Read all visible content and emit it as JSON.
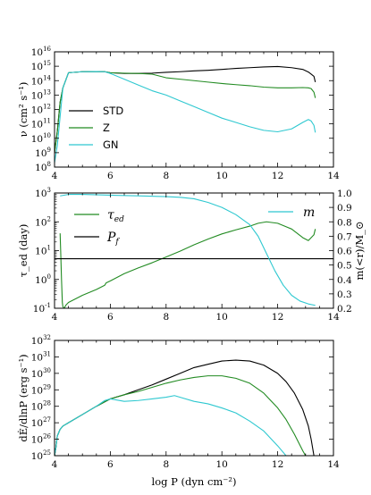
{
  "chart_data": [
    {
      "type": "line",
      "xlim": [
        4,
        14
      ],
      "ylim_exp": [
        8,
        16
      ],
      "yscale": "log",
      "ylabel": "ν (cm² s⁻¹)",
      "x_ticks": [
        "4",
        "6",
        "8",
        "10",
        "12",
        "14"
      ],
      "y_ticks": [
        "10^8",
        "10^9",
        "10^10",
        "10^11",
        "10^12",
        "10^13",
        "10^14",
        "10^15",
        "10^16"
      ],
      "legend": "left",
      "series": [
        {
          "name": "STD",
          "color": "#000000",
          "x": [
            4.0,
            4.1,
            4.2,
            4.3,
            4.5,
            5.0,
            5.5,
            5.8,
            6.0,
            6.5,
            7.0,
            7.5,
            8.0,
            8.5,
            9.0,
            9.5,
            10.0,
            10.5,
            11.0,
            11.5,
            12.0,
            12.5,
            12.9,
            13.1,
            13.2,
            13.3,
            13.35
          ],
          "y": [
            9.0,
            10.5,
            12.5,
            13.5,
            14.55,
            14.62,
            14.63,
            14.62,
            14.55,
            14.5,
            14.5,
            14.52,
            14.58,
            14.62,
            14.68,
            14.72,
            14.78,
            14.85,
            14.9,
            14.95,
            14.98,
            14.9,
            14.78,
            14.6,
            14.45,
            14.3,
            13.9
          ]
        },
        {
          "name": "Z",
          "color": "#228B22",
          "x": [
            4.0,
            4.1,
            4.2,
            4.3,
            4.5,
            5.0,
            5.5,
            5.8,
            6.0,
            6.5,
            7.0,
            7.5,
            8.0,
            8.5,
            9.0,
            9.5,
            10.0,
            10.5,
            11.0,
            11.5,
            12.0,
            12.5,
            12.9,
            13.1,
            13.2,
            13.3,
            13.35
          ],
          "y": [
            9.0,
            10.5,
            12.5,
            13.5,
            14.55,
            14.62,
            14.63,
            14.62,
            14.55,
            14.52,
            14.5,
            14.45,
            14.2,
            14.1,
            14.0,
            13.9,
            13.8,
            13.72,
            13.65,
            13.55,
            13.5,
            13.5,
            13.52,
            13.5,
            13.45,
            13.2,
            12.8
          ]
        },
        {
          "name": "GN",
          "color": "#2EC8D0",
          "x": [
            4.0,
            4.1,
            4.2,
            4.3,
            4.5,
            5.0,
            5.5,
            5.8,
            6.0,
            6.5,
            7.0,
            7.5,
            8.0,
            8.5,
            9.0,
            9.5,
            10.0,
            10.5,
            11.0,
            11.5,
            12.0,
            12.5,
            12.9,
            13.1,
            13.2,
            13.3,
            13.35
          ],
          "y": [
            8.3,
            9.5,
            11.5,
            13.5,
            14.55,
            14.62,
            14.63,
            14.62,
            14.5,
            14.1,
            13.7,
            13.3,
            13.0,
            12.6,
            12.2,
            11.8,
            11.4,
            11.1,
            10.8,
            10.55,
            10.45,
            10.65,
            11.1,
            11.3,
            11.2,
            10.9,
            10.4
          ]
        }
      ]
    },
    {
      "type": "line",
      "xlim": [
        4,
        14
      ],
      "ylim_exp": [
        -1,
        3
      ],
      "yscale": "log",
      "ylabel": "τ_ed (day)",
      "y2label": "m(<r)/M_⊙",
      "y2lim": [
        0.2,
        1.0
      ],
      "x_ticks": [
        "4",
        "6",
        "8",
        "10",
        "12",
        "14"
      ],
      "y_ticks": [
        "10^-1",
        "10^0",
        "10^1",
        "10^2",
        "10^3"
      ],
      "y2_ticks": [
        "0.2",
        "0.3",
        "0.4",
        "0.5",
        "0.6",
        "0.7",
        "0.8",
        "0.9",
        "1.0"
      ],
      "series": [
        {
          "name": "τ_ed",
          "color": "#228B22",
          "x": [
            4.2,
            4.22,
            4.25,
            4.28,
            4.3,
            4.35,
            4.4,
            4.5,
            5.0,
            5.5,
            5.8,
            5.85,
            6.0,
            6.5,
            7.0,
            7.5,
            8.0,
            8.5,
            9.0,
            9.5,
            10.0,
            10.5,
            11.0,
            11.3,
            11.6,
            12.0,
            12.5,
            12.9,
            13.1,
            13.3,
            13.35
          ],
          "y": [
            1.6,
            1.0,
            0.0,
            -0.8,
            -0.95,
            -1.0,
            -0.9,
            -0.8,
            -0.55,
            -0.35,
            -0.2,
            -0.12,
            -0.05,
            0.2,
            0.4,
            0.58,
            0.78,
            0.98,
            1.2,
            1.4,
            1.58,
            1.72,
            1.85,
            1.95,
            2.0,
            1.95,
            1.75,
            1.45,
            1.35,
            1.55,
            1.75
          ]
        },
        {
          "name": "P_f",
          "color": "#000000",
          "x": [
            4.0,
            14.0
          ],
          "y": [
            0.72,
            0.72
          ]
        },
        {
          "name": "m",
          "color": "#2EC8D0",
          "axis": "right",
          "x": [
            4.2,
            4.5,
            5.0,
            6.0,
            7.0,
            8.0,
            8.5,
            9.0,
            9.5,
            10.0,
            10.5,
            11.0,
            11.3,
            11.6,
            11.9,
            12.2,
            12.5,
            12.8,
            13.1,
            13.35
          ],
          "y": [
            0.98,
            0.99,
            0.99,
            0.985,
            0.98,
            0.975,
            0.97,
            0.96,
            0.935,
            0.9,
            0.85,
            0.78,
            0.7,
            0.58,
            0.46,
            0.36,
            0.29,
            0.25,
            0.23,
            0.22
          ]
        }
      ]
    },
    {
      "type": "line",
      "xlim": [
        4,
        14
      ],
      "ylim_exp": [
        25,
        32
      ],
      "yscale": "log",
      "ylabel": "dĖ/dlnP (erg s⁻¹)",
      "xlabel": "log P (dyn cm⁻²)",
      "x_ticks": [
        "4",
        "6",
        "8",
        "10",
        "12",
        "14"
      ],
      "y_ticks": [
        "10^25",
        "10^26",
        "10^27",
        "10^28",
        "10^29",
        "10^30",
        "10^31",
        "10^32"
      ],
      "series": [
        {
          "name": "STD",
          "color": "#000000",
          "x": [
            4.0,
            4.05,
            4.1,
            4.2,
            4.3,
            4.5,
            5.0,
            5.5,
            6.0,
            6.5,
            7.0,
            7.5,
            8.0,
            8.5,
            9.0,
            9.5,
            10.0,
            10.5,
            11.0,
            11.5,
            12.0,
            12.3,
            12.6,
            12.9,
            13.1,
            13.2,
            13.3
          ],
          "y": [
            25.0,
            25.5,
            26.2,
            26.6,
            26.8,
            27.0,
            27.5,
            28.0,
            28.45,
            28.7,
            29.0,
            29.3,
            29.65,
            30.0,
            30.35,
            30.55,
            30.75,
            30.8,
            30.75,
            30.5,
            30.0,
            29.5,
            28.8,
            27.8,
            26.8,
            26.0,
            25.0
          ]
        },
        {
          "name": "Z",
          "color": "#228B22",
          "x": [
            4.0,
            4.05,
            4.1,
            4.2,
            4.3,
            4.5,
            5.0,
            5.5,
            6.0,
            6.5,
            7.0,
            7.5,
            8.0,
            8.5,
            9.0,
            9.5,
            10.0,
            10.5,
            11.0,
            11.5,
            12.0,
            12.3,
            12.6,
            12.9,
            13.0
          ],
          "y": [
            25.0,
            25.5,
            26.2,
            26.6,
            26.8,
            27.0,
            27.5,
            28.0,
            28.45,
            28.7,
            28.9,
            29.15,
            29.4,
            29.6,
            29.75,
            29.85,
            29.85,
            29.7,
            29.4,
            28.8,
            27.9,
            27.2,
            26.3,
            25.3,
            25.0
          ]
        },
        {
          "name": "GN",
          "color": "#2EC8D0",
          "x": [
            4.0,
            4.05,
            4.1,
            4.2,
            4.3,
            4.5,
            5.0,
            5.5,
            5.8,
            6.0,
            6.5,
            7.0,
            7.5,
            8.0,
            8.3,
            8.6,
            9.0,
            9.5,
            10.0,
            10.5,
            11.0,
            11.5,
            12.0,
            12.3
          ],
          "y": [
            25.0,
            25.5,
            26.2,
            26.6,
            26.8,
            27.0,
            27.5,
            28.0,
            28.35,
            28.45,
            28.3,
            28.35,
            28.45,
            28.55,
            28.65,
            28.5,
            28.3,
            28.15,
            27.9,
            27.6,
            27.1,
            26.5,
            25.6,
            25.0
          ]
        }
      ]
    }
  ]
}
